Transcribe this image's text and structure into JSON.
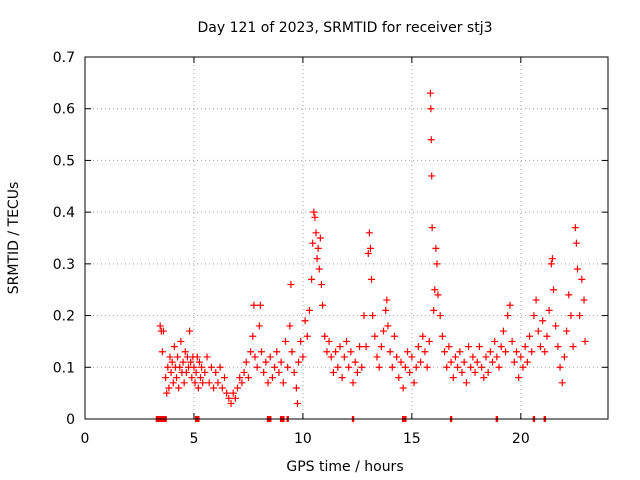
{
  "chart_data": {
    "type": "scatter",
    "title": "Day 121 of 2023, SRMTID for receiver stj3",
    "xlabel": "GPS time / hours",
    "ylabel": "SRMTID / TECUs",
    "xlim": [
      0,
      24
    ],
    "ylim": [
      0,
      0.7
    ],
    "xticks": [
      0,
      5,
      10,
      15,
      20
    ],
    "yticks": [
      0,
      0.1,
      0.2,
      0.3,
      0.4,
      0.5,
      0.6,
      0.7
    ],
    "xtick_labels": [
      "0",
      "5",
      "10",
      "15",
      "20"
    ],
    "ytick_labels": [
      "0",
      "0.1",
      "0.2",
      "0.3",
      "0.4",
      "0.5",
      "0.6",
      "0.7"
    ],
    "grid": true,
    "marker": "+",
    "color": "#ff0000",
    "series": [
      {
        "name": "SRMTID",
        "points": [
          [
            3.45,
            0.18
          ],
          [
            3.5,
            0.17
          ],
          [
            3.55,
            0.13
          ],
          [
            3.6,
            0.17
          ],
          [
            3.7,
            0.08
          ],
          [
            3.75,
            0.05
          ],
          [
            3.8,
            0.1
          ],
          [
            3.85,
            0.06
          ],
          [
            3.9,
            0.12
          ],
          [
            3.95,
            0.09
          ],
          [
            4.0,
            0.11
          ],
          [
            4.05,
            0.07
          ],
          [
            4.1,
            0.14
          ],
          [
            4.15,
            0.1
          ],
          [
            4.2,
            0.08
          ],
          [
            4.25,
            0.12
          ],
          [
            4.3,
            0.06
          ],
          [
            4.35,
            0.1
          ],
          [
            4.4,
            0.15
          ],
          [
            4.45,
            0.09
          ],
          [
            4.5,
            0.11
          ],
          [
            4.55,
            0.07
          ],
          [
            4.6,
            0.13
          ],
          [
            4.65,
            0.09
          ],
          [
            4.7,
            0.12
          ],
          [
            4.75,
            0.1
          ],
          [
            4.8,
            0.17
          ],
          [
            4.85,
            0.11
          ],
          [
            4.9,
            0.08
          ],
          [
            4.95,
            0.12
          ],
          [
            5.0,
            0.1
          ],
          [
            5.05,
            0.07
          ],
          [
            5.1,
            0.09
          ],
          [
            5.15,
            0.12
          ],
          [
            5.2,
            0.06
          ],
          [
            5.25,
            0.11
          ],
          [
            5.3,
            0.08
          ],
          [
            5.35,
            0.1
          ],
          [
            5.4,
            0.07
          ],
          [
            5.5,
            0.09
          ],
          [
            5.6,
            0.12
          ],
          [
            5.7,
            0.07
          ],
          [
            5.8,
            0.1
          ],
          [
            5.9,
            0.06
          ],
          [
            6.0,
            0.09
          ],
          [
            6.1,
            0.07
          ],
          [
            6.2,
            0.1
          ],
          [
            6.3,
            0.06
          ],
          [
            6.4,
            0.08
          ],
          [
            6.5,
            0.05
          ],
          [
            6.6,
            0.04
          ],
          [
            6.7,
            0.03
          ],
          [
            6.8,
            0.05
          ],
          [
            6.9,
            0.04
          ],
          [
            7.0,
            0.06
          ],
          [
            7.1,
            0.08
          ],
          [
            7.2,
            0.07
          ],
          [
            7.3,
            0.09
          ],
          [
            7.4,
            0.11
          ],
          [
            7.5,
            0.08
          ],
          [
            7.6,
            0.13
          ],
          [
            7.7,
            0.16
          ],
          [
            7.75,
            0.22
          ],
          [
            7.8,
            0.12
          ],
          [
            7.9,
            0.1
          ],
          [
            8.0,
            0.18
          ],
          [
            8.05,
            0.22
          ],
          [
            8.1,
            0.13
          ],
          [
            8.2,
            0.09
          ],
          [
            8.3,
            0.11
          ],
          [
            8.4,
            0.07
          ],
          [
            8.5,
            0.12
          ],
          [
            8.6,
            0.08
          ],
          [
            8.7,
            0.1
          ],
          [
            8.8,
            0.13
          ],
          [
            8.9,
            0.09
          ],
          [
            9.0,
            0.11
          ],
          [
            9.1,
            0.07
          ],
          [
            9.2,
            0.15
          ],
          [
            9.3,
            0.1
          ],
          [
            9.4,
            0.18
          ],
          [
            9.45,
            0.26
          ],
          [
            9.5,
            0.13
          ],
          [
            9.6,
            0.09
          ],
          [
            9.7,
            0.06
          ],
          [
            9.75,
            0.03
          ],
          [
            9.8,
            0.11
          ],
          [
            9.9,
            0.15
          ],
          [
            10.0,
            0.12
          ],
          [
            10.1,
            0.19
          ],
          [
            10.2,
            0.16
          ],
          [
            10.3,
            0.21
          ],
          [
            10.4,
            0.27
          ],
          [
            10.45,
            0.34
          ],
          [
            10.5,
            0.4
          ],
          [
            10.55,
            0.39
          ],
          [
            10.6,
            0.36
          ],
          [
            10.65,
            0.31
          ],
          [
            10.7,
            0.33
          ],
          [
            10.75,
            0.29
          ],
          [
            10.8,
            0.35
          ],
          [
            10.85,
            0.26
          ],
          [
            10.9,
            0.22
          ],
          [
            11.0,
            0.16
          ],
          [
            11.1,
            0.13
          ],
          [
            11.2,
            0.15
          ],
          [
            11.3,
            0.12
          ],
          [
            11.4,
            0.09
          ],
          [
            11.5,
            0.13
          ],
          [
            11.6,
            0.1
          ],
          [
            11.7,
            0.14
          ],
          [
            11.8,
            0.08
          ],
          [
            11.9,
            0.12
          ],
          [
            12.0,
            0.15
          ],
          [
            12.1,
            0.1
          ],
          [
            12.2,
            0.13
          ],
          [
            12.3,
            0.07
          ],
          [
            12.4,
            0.11
          ],
          [
            12.5,
            0.09
          ],
          [
            12.6,
            0.14
          ],
          [
            12.7,
            0.1
          ],
          [
            12.8,
            0.2
          ],
          [
            12.9,
            0.14
          ],
          [
            13.0,
            0.32
          ],
          [
            13.05,
            0.36
          ],
          [
            13.1,
            0.33
          ],
          [
            13.15,
            0.27
          ],
          [
            13.2,
            0.2
          ],
          [
            13.3,
            0.16
          ],
          [
            13.4,
            0.12
          ],
          [
            13.5,
            0.1
          ],
          [
            13.6,
            0.14
          ],
          [
            13.7,
            0.17
          ],
          [
            13.8,
            0.21
          ],
          [
            13.85,
            0.23
          ],
          [
            13.9,
            0.18
          ],
          [
            14.0,
            0.13
          ],
          [
            14.1,
            0.1
          ],
          [
            14.2,
            0.16
          ],
          [
            14.3,
            0.12
          ],
          [
            14.4,
            0.08
          ],
          [
            14.5,
            0.11
          ],
          [
            14.6,
            0.06
          ],
          [
            14.7,
            0.1
          ],
          [
            14.8,
            0.13
          ],
          [
            14.9,
            0.09
          ],
          [
            15.0,
            0.12
          ],
          [
            15.1,
            0.07
          ],
          [
            15.2,
            0.1
          ],
          [
            15.3,
            0.14
          ],
          [
            15.4,
            0.11
          ],
          [
            15.5,
            0.16
          ],
          [
            15.6,
            0.13
          ],
          [
            15.7,
            0.1
          ],
          [
            15.8,
            0.15
          ],
          [
            15.85,
            0.63
          ],
          [
            15.87,
            0.6
          ],
          [
            15.89,
            0.54
          ],
          [
            15.91,
            0.47
          ],
          [
            15.93,
            0.37
          ],
          [
            16.0,
            0.21
          ],
          [
            16.05,
            0.25
          ],
          [
            16.1,
            0.33
          ],
          [
            16.15,
            0.3
          ],
          [
            16.2,
            0.24
          ],
          [
            16.3,
            0.2
          ],
          [
            16.4,
            0.16
          ],
          [
            16.5,
            0.13
          ],
          [
            16.6,
            0.1
          ],
          [
            16.7,
            0.14
          ],
          [
            16.8,
            0.11
          ],
          [
            16.9,
            0.08
          ],
          [
            17.0,
            0.12
          ],
          [
            17.1,
            0.1
          ],
          [
            17.2,
            0.13
          ],
          [
            17.3,
            0.09
          ],
          [
            17.4,
            0.11
          ],
          [
            17.5,
            0.07
          ],
          [
            17.6,
            0.14
          ],
          [
            17.7,
            0.1
          ],
          [
            17.8,
            0.12
          ],
          [
            17.9,
            0.09
          ],
          [
            18.0,
            0.11
          ],
          [
            18.1,
            0.14
          ],
          [
            18.2,
            0.1
          ],
          [
            18.3,
            0.08
          ],
          [
            18.4,
            0.12
          ],
          [
            18.5,
            0.09
          ],
          [
            18.6,
            0.13
          ],
          [
            18.7,
            0.11
          ],
          [
            18.8,
            0.15
          ],
          [
            18.9,
            0.12
          ],
          [
            19.0,
            0.1
          ],
          [
            19.1,
            0.14
          ],
          [
            19.2,
            0.17
          ],
          [
            19.3,
            0.13
          ],
          [
            19.4,
            0.2
          ],
          [
            19.5,
            0.22
          ],
          [
            19.6,
            0.15
          ],
          [
            19.7,
            0.11
          ],
          [
            19.8,
            0.13
          ],
          [
            19.9,
            0.08
          ],
          [
            20.0,
            0.12
          ],
          [
            20.1,
            0.1
          ],
          [
            20.2,
            0.14
          ],
          [
            20.3,
            0.11
          ],
          [
            20.4,
            0.16
          ],
          [
            20.5,
            0.13
          ],
          [
            20.6,
            0.2
          ],
          [
            20.7,
            0.23
          ],
          [
            20.8,
            0.17
          ],
          [
            20.9,
            0.14
          ],
          [
            21.0,
            0.19
          ],
          [
            21.1,
            0.13
          ],
          [
            21.2,
            0.16
          ],
          [
            21.3,
            0.21
          ],
          [
            21.4,
            0.3
          ],
          [
            21.45,
            0.31
          ],
          [
            21.5,
            0.25
          ],
          [
            21.6,
            0.18
          ],
          [
            21.7,
            0.14
          ],
          [
            21.8,
            0.1
          ],
          [
            21.9,
            0.07
          ],
          [
            22.0,
            0.12
          ],
          [
            22.1,
            0.17
          ],
          [
            22.2,
            0.24
          ],
          [
            22.3,
            0.2
          ],
          [
            22.4,
            0.14
          ],
          [
            22.5,
            0.37
          ],
          [
            22.55,
            0.34
          ],
          [
            22.6,
            0.29
          ],
          [
            22.7,
            0.2
          ],
          [
            22.8,
            0.27
          ],
          [
            22.9,
            0.23
          ],
          [
            22.95,
            0.15
          ]
        ]
      }
    ],
    "baseline_markers_x": [
      3.3,
      3.4,
      3.5,
      3.6,
      3.7,
      5.1,
      5.2,
      8.4,
      8.5,
      9.0,
      9.1,
      9.3,
      12.3,
      14.6,
      14.7,
      16.8,
      18.9,
      20.6,
      21.1
    ]
  }
}
